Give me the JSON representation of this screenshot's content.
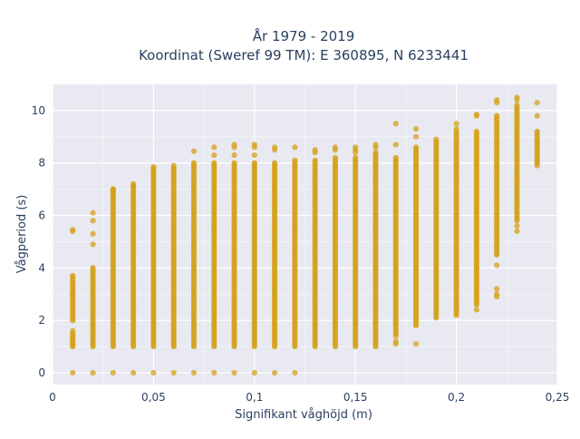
{
  "chart_data": {
    "type": "scatter",
    "title_lines": [
      "År 1979 - 2019",
      "Koordinat (Sweref 99 TM): E 360895, N 6233441"
    ],
    "xlabel": "Signifikant våghöjd (m)",
    "ylabel": "Vågperiod (s)",
    "xlim": [
      0,
      0.25
    ],
    "ylim": [
      -0.45,
      11.0
    ],
    "x_ticks": [
      0,
      0.05,
      0.1,
      0.15,
      0.2,
      0.25
    ],
    "x_tick_labels": [
      "0",
      "0,05",
      "0,1",
      "0,15",
      "0,2",
      "0,25"
    ],
    "y_ticks": [
      0,
      2,
      4,
      6,
      8,
      10
    ],
    "y_tick_labels": [
      "0",
      "2",
      "4",
      "6",
      "8",
      "10"
    ],
    "grid": true,
    "plot_background": "#e9e9f2",
    "marker_color": "#d4a017",
    "columns": [
      {
        "x": 0.01,
        "dense_ranges": [
          [
            1.0,
            1.5
          ],
          [
            2.0,
            3.7
          ]
        ],
        "points": [
          0,
          5.4,
          5.45,
          1.6,
          1.3,
          1.1,
          3.0
        ]
      },
      {
        "x": 0.02,
        "dense_ranges": [
          [
            1.0,
            4.0
          ]
        ],
        "points": [
          0,
          5.3,
          5.8,
          6.1,
          4.9
        ]
      },
      {
        "x": 0.03,
        "dense_ranges": [
          [
            1.0,
            7.0
          ]
        ],
        "points": [
          0,
          6.7,
          6.9,
          7.0
        ]
      },
      {
        "x": 0.04,
        "dense_ranges": [
          [
            1.0,
            7.2
          ]
        ],
        "points": [
          0,
          7.1
        ]
      },
      {
        "x": 0.05,
        "dense_ranges": [
          [
            1.0,
            7.8
          ]
        ],
        "points": [
          0,
          7.6,
          7.85
        ]
      },
      {
        "x": 0.06,
        "dense_ranges": [
          [
            1.0,
            7.8
          ]
        ],
        "points": [
          0,
          7.9
        ]
      },
      {
        "x": 0.07,
        "dense_ranges": [
          [
            1.0,
            8.0
          ]
        ],
        "points": [
          0,
          8.45
        ]
      },
      {
        "x": 0.08,
        "dense_ranges": [
          [
            1.0,
            8.0
          ]
        ],
        "points": [
          0,
          8.6,
          8.3
        ]
      },
      {
        "x": 0.09,
        "dense_ranges": [
          [
            1.0,
            8.0
          ]
        ],
        "points": [
          0,
          8.6,
          8.7,
          8.3
        ]
      },
      {
        "x": 0.1,
        "dense_ranges": [
          [
            1.0,
            8.0
          ]
        ],
        "points": [
          0,
          8.7,
          8.6,
          8.3
        ]
      },
      {
        "x": 0.11,
        "dense_ranges": [
          [
            1.0,
            8.0
          ]
        ],
        "points": [
          0,
          8.5,
          8.6
        ]
      },
      {
        "x": 0.12,
        "dense_ranges": [
          [
            1.0,
            8.1
          ]
        ],
        "points": [
          0,
          8.6
        ]
      },
      {
        "x": 0.13,
        "dense_ranges": [
          [
            1.0,
            8.1
          ]
        ],
        "points": [
          8.5,
          8.4
        ]
      },
      {
        "x": 0.14,
        "dense_ranges": [
          [
            1.0,
            8.2
          ]
        ],
        "points": [
          8.5,
          8.6
        ]
      },
      {
        "x": 0.15,
        "dense_ranges": [
          [
            1.0,
            8.2
          ]
        ],
        "points": [
          8.5,
          8.6,
          8.4
        ]
      },
      {
        "x": 0.16,
        "dense_ranges": [
          [
            1.0,
            8.4
          ]
        ],
        "points": [
          8.7,
          8.6
        ]
      },
      {
        "x": 0.17,
        "dense_ranges": [
          [
            1.5,
            8.2
          ]
        ],
        "points": [
          9.5,
          8.7,
          1.2,
          1.1,
          1.4
        ]
      },
      {
        "x": 0.18,
        "dense_ranges": [
          [
            1.8,
            8.6
          ]
        ],
        "points": [
          9.3,
          9.0,
          1.1
        ]
      },
      {
        "x": 0.19,
        "dense_ranges": [
          [
            2.1,
            8.8
          ]
        ],
        "points": [
          8.9
        ]
      },
      {
        "x": 0.2,
        "dense_ranges": [
          [
            2.2,
            9.2
          ]
        ],
        "points": [
          9.5,
          9.3
        ]
      },
      {
        "x": 0.21,
        "dense_ranges": [
          [
            2.6,
            9.2
          ]
        ],
        "points": [
          9.8,
          9.85,
          2.4,
          4.0
        ]
      },
      {
        "x": 0.22,
        "dense_ranges": [
          [
            4.5,
            9.8
          ]
        ],
        "points": [
          10.4,
          10.3,
          3.2,
          3.0,
          2.9,
          4.1
        ]
      },
      {
        "x": 0.23,
        "dense_ranges": [
          [
            5.8,
            10.2
          ]
        ],
        "points": [
          10.5,
          10.4,
          5.4,
          5.6
        ]
      },
      {
        "x": 0.24,
        "dense_ranges": [
          [
            8.0,
            9.2
          ]
        ],
        "points": [
          10.3,
          9.8,
          7.9
        ]
      }
    ]
  }
}
